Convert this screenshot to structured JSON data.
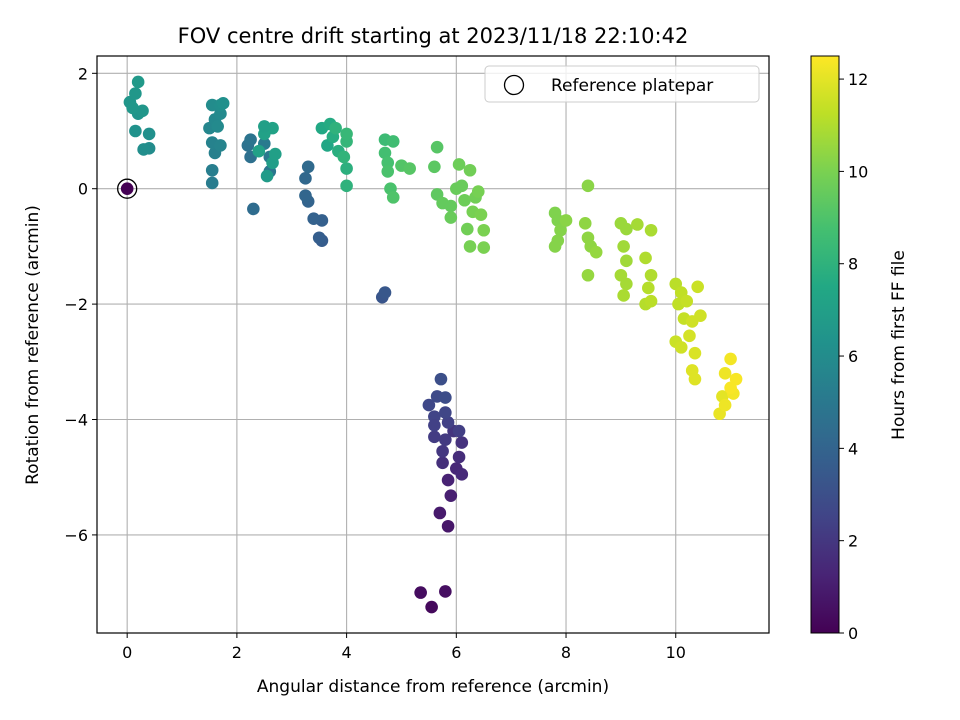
{
  "chart_data": {
    "type": "scatter",
    "title": "FOV centre drift starting at 2023/11/18 22:10:42",
    "xlabel": "Angular distance from reference (arcmin)",
    "ylabel": "Rotation from reference (arcmin)",
    "xlim": [
      -0.55,
      11.7
    ],
    "ylim": [
      -7.7,
      2.3
    ],
    "xticks": [
      0,
      2,
      4,
      6,
      8,
      10
    ],
    "yticks": [
      -6,
      -4,
      -2,
      0,
      2
    ],
    "grid": true,
    "legend": {
      "placement": "top-right",
      "entries": [
        {
          "label": "Reference platepar",
          "marker": "open-circle"
        }
      ]
    },
    "colorbar": {
      "label": "Hours from first FF file",
      "colormap": "viridis",
      "range": [
        0,
        12.5
      ],
      "ticks": [
        0,
        2,
        4,
        6,
        8,
        10,
        12
      ]
    },
    "reference_point": {
      "x": 0,
      "y": 0,
      "hours": 0
    },
    "points": [
      [
        5.55,
        -7.25,
        0.3
      ],
      [
        5.35,
        -7.0,
        0.4
      ],
      [
        5.8,
        -6.98,
        0.5
      ],
      [
        5.85,
        -5.85,
        0.8
      ],
      [
        5.7,
        -5.62,
        0.9
      ],
      [
        5.9,
        -5.32,
        1.1
      ],
      [
        5.85,
        -5.05,
        1.2
      ],
      [
        6.0,
        -4.85,
        1.4
      ],
      [
        6.1,
        -4.95,
        1.5
      ],
      [
        6.05,
        -4.65,
        1.6
      ],
      [
        5.75,
        -4.75,
        1.7
      ],
      [
        6.1,
        -4.4,
        1.8
      ],
      [
        5.95,
        -4.2,
        1.9
      ],
      [
        5.75,
        -4.55,
        2.0
      ],
      [
        5.8,
        -4.35,
        2.1
      ],
      [
        5.6,
        -4.3,
        2.2
      ],
      [
        6.05,
        -4.2,
        2.3
      ],
      [
        5.85,
        -4.05,
        2.4
      ],
      [
        5.6,
        -3.95,
        2.5
      ],
      [
        5.8,
        -3.88,
        2.6
      ],
      [
        5.5,
        -3.75,
        2.7
      ],
      [
        5.65,
        -3.6,
        2.8
      ],
      [
        5.8,
        -3.62,
        2.9
      ],
      [
        5.72,
        -3.3,
        3.0
      ],
      [
        5.6,
        -4.1,
        2.4
      ],
      [
        4.65,
        -1.88,
        3.3
      ],
      [
        4.7,
        -1.8,
        3.4
      ],
      [
        3.55,
        -0.9,
        3.6
      ],
      [
        3.5,
        -0.85,
        3.7
      ],
      [
        3.55,
        -0.55,
        3.8
      ],
      [
        3.4,
        -0.52,
        3.9
      ],
      [
        3.3,
        -0.22,
        4.0
      ],
      [
        3.25,
        -0.12,
        4.1
      ],
      [
        3.25,
        0.18,
        4.2
      ],
      [
        3.3,
        0.38,
        4.3
      ],
      [
        2.3,
        -0.35,
        4.4
      ],
      [
        2.25,
        0.55,
        4.6
      ],
      [
        2.2,
        0.75,
        4.7
      ],
      [
        2.25,
        0.85,
        4.8
      ],
      [
        2.6,
        0.3,
        4.9
      ],
      [
        2.6,
        0.55,
        5.0
      ],
      [
        2.5,
        0.78,
        5.1
      ],
      [
        1.55,
        0.1,
        5.2
      ],
      [
        1.55,
        0.32,
        5.3
      ],
      [
        1.6,
        0.62,
        5.4
      ],
      [
        1.55,
        0.8,
        5.5
      ],
      [
        1.7,
        0.75,
        5.6
      ],
      [
        1.5,
        1.05,
        5.7
      ],
      [
        1.6,
        1.2,
        5.8
      ],
      [
        1.7,
        1.3,
        5.9
      ],
      [
        1.55,
        1.45,
        6.0
      ],
      [
        1.7,
        1.45,
        6.1
      ],
      [
        1.75,
        1.48,
        6.2
      ],
      [
        1.65,
        1.08,
        5.9
      ],
      [
        0.4,
        0.7,
        6.0
      ],
      [
        0.3,
        0.68,
        6.1
      ],
      [
        0.4,
        0.95,
        6.2
      ],
      [
        0.15,
        1.0,
        6.3
      ],
      [
        0.2,
        1.3,
        6.4
      ],
      [
        0.05,
        1.5,
        6.5
      ],
      [
        0.15,
        1.65,
        6.6
      ],
      [
        0.2,
        1.85,
        6.7
      ],
      [
        0.28,
        1.35,
        6.5
      ],
      [
        0.1,
        1.4,
        6.6
      ],
      [
        2.55,
        0.22,
        6.8
      ],
      [
        2.65,
        0.45,
        6.9
      ],
      [
        2.7,
        0.6,
        7.0
      ],
      [
        2.5,
        0.95,
        7.1
      ],
      [
        2.65,
        1.05,
        7.2
      ],
      [
        2.5,
        1.08,
        7.0
      ],
      [
        2.4,
        0.65,
        7.1
      ],
      [
        3.65,
        0.75,
        7.4
      ],
      [
        3.55,
        1.05,
        7.5
      ],
      [
        3.7,
        1.12,
        7.6
      ],
      [
        3.75,
        0.9,
        7.7
      ],
      [
        3.85,
        0.65,
        7.8
      ],
      [
        4.0,
        0.35,
        7.9
      ],
      [
        4.0,
        0.05,
        8.0
      ],
      [
        3.95,
        0.55,
        8.1
      ],
      [
        4.0,
        0.82,
        8.2
      ],
      [
        4.0,
        0.95,
        8.3
      ],
      [
        3.8,
        1.05,
        8.0
      ],
      [
        4.7,
        0.85,
        8.5
      ],
      [
        4.85,
        0.82,
        8.6
      ],
      [
        4.7,
        0.62,
        8.7
      ],
      [
        4.75,
        0.45,
        8.8
      ],
      [
        4.75,
        0.3,
        8.9
      ],
      [
        4.8,
        0.0,
        8.9
      ],
      [
        4.85,
        -0.15,
        9.0
      ],
      [
        5.0,
        0.4,
        9.1
      ],
      [
        5.15,
        0.35,
        9.2
      ],
      [
        5.65,
        0.72,
        9.2
      ],
      [
        5.6,
        0.38,
        9.3
      ],
      [
        5.65,
        -0.1,
        9.4
      ],
      [
        5.75,
        -0.25,
        9.5
      ],
      [
        5.9,
        -0.3,
        9.5
      ],
      [
        6.0,
        0.0,
        9.6
      ],
      [
        6.1,
        0.05,
        9.6
      ],
      [
        6.05,
        0.42,
        9.7
      ],
      [
        5.9,
        -0.5,
        9.6
      ],
      [
        6.15,
        -0.2,
        9.7
      ],
      [
        6.2,
        -0.7,
        9.8
      ],
      [
        6.25,
        0.32,
        9.8
      ],
      [
        6.3,
        -0.4,
        9.9
      ],
      [
        6.35,
        -0.15,
        9.8
      ],
      [
        6.4,
        -0.05,
        9.9
      ],
      [
        6.45,
        -0.45,
        10.0
      ],
      [
        6.5,
        -0.72,
        10.0
      ],
      [
        6.25,
        -1.0,
        9.9
      ],
      [
        6.5,
        -1.02,
        10.0
      ],
      [
        7.8,
        -0.42,
        10.1
      ],
      [
        7.85,
        -0.55,
        10.1
      ],
      [
        7.9,
        -0.72,
        10.2
      ],
      [
        7.85,
        -0.9,
        10.2
      ],
      [
        7.8,
        -1.0,
        10.2
      ],
      [
        8.0,
        -0.55,
        10.3
      ],
      [
        8.4,
        0.05,
        10.3
      ],
      [
        8.35,
        -0.6,
        10.4
      ],
      [
        8.4,
        -0.85,
        10.4
      ],
      [
        8.45,
        -1.0,
        10.4
      ],
      [
        8.55,
        -1.1,
        10.5
      ],
      [
        8.4,
        -1.5,
        10.5
      ],
      [
        9.0,
        -0.6,
        10.6
      ],
      [
        9.1,
        -0.7,
        10.6
      ],
      [
        9.05,
        -1.0,
        10.7
      ],
      [
        9.1,
        -1.25,
        10.7
      ],
      [
        9.0,
        -1.5,
        10.8
      ],
      [
        9.1,
        -1.65,
        10.8
      ],
      [
        9.05,
        -1.85,
        10.9
      ],
      [
        9.3,
        -0.62,
        10.8
      ],
      [
        9.55,
        -0.72,
        10.9
      ],
      [
        9.45,
        -1.2,
        11.0
      ],
      [
        9.55,
        -1.5,
        11.0
      ],
      [
        9.5,
        -1.72,
        11.1
      ],
      [
        9.45,
        -2.0,
        11.1
      ],
      [
        9.55,
        -1.95,
        11.2
      ],
      [
        10.0,
        -1.65,
        11.2
      ],
      [
        10.1,
        -1.8,
        11.3
      ],
      [
        10.05,
        -2.0,
        11.3
      ],
      [
        10.15,
        -2.25,
        11.4
      ],
      [
        10.0,
        -2.65,
        11.5
      ],
      [
        10.1,
        -2.75,
        11.6
      ],
      [
        10.3,
        -2.3,
        11.6
      ],
      [
        10.25,
        -2.55,
        11.7
      ],
      [
        10.35,
        -2.85,
        11.8
      ],
      [
        10.3,
        -3.15,
        11.9
      ],
      [
        10.35,
        -3.3,
        11.9
      ],
      [
        10.2,
        -1.95,
        11.4
      ],
      [
        10.4,
        -1.7,
        11.5
      ],
      [
        10.45,
        -2.2,
        11.6
      ],
      [
        10.85,
        -3.6,
        12.0
      ],
      [
        10.8,
        -3.9,
        12.1
      ],
      [
        10.9,
        -3.2,
        12.2
      ],
      [
        11.0,
        -2.95,
        12.3
      ],
      [
        11.05,
        -3.55,
        12.3
      ],
      [
        11.1,
        -3.3,
        12.4
      ],
      [
        11.0,
        -3.45,
        12.4
      ],
      [
        10.9,
        -3.75,
        12.2
      ]
    ]
  }
}
